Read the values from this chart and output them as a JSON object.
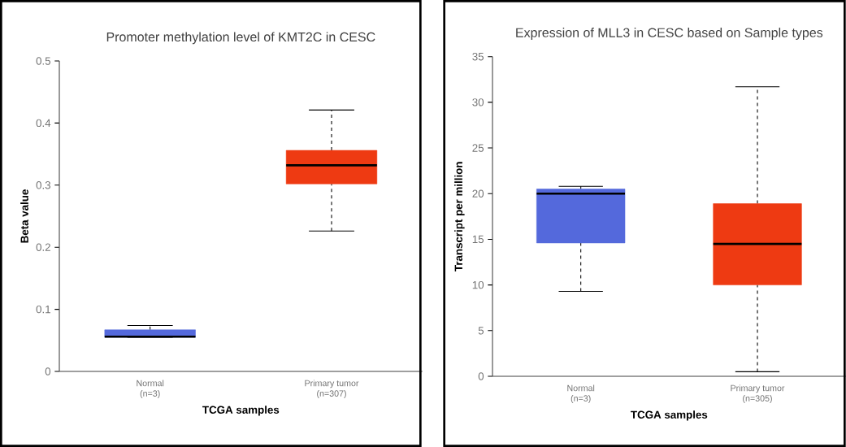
{
  "chart_data": [
    {
      "type": "box",
      "title": "Promoter methylation level of KMT2C in CESC",
      "xlabel": "TCGA samples",
      "ylabel": "Beta value",
      "categories": [
        "Normal (n=3)",
        "Primary tumor (n=307)"
      ],
      "colors": [
        "#5469dc",
        "#ee3a12"
      ],
      "boxes": [
        {
          "low": 0.055,
          "q1": 0.055,
          "median": 0.056,
          "q3": 0.067,
          "high": 0.074
        },
        {
          "low": 0.226,
          "q1": 0.302,
          "median": 0.332,
          "q3": 0.356,
          "high": 0.421
        }
      ],
      "ylim": [
        0,
        0.5
      ],
      "yticks": [
        0,
        0.1,
        0.2,
        0.3,
        0.4,
        0.5
      ]
    },
    {
      "type": "box",
      "title": "Expression of MLL3 in CESC based on Sample types",
      "xlabel": "TCGA samples",
      "ylabel": "Transcript per million",
      "categories": [
        "Normal (n=3)",
        "Primary tumor (n=305)"
      ],
      "colors": [
        "#5469dc",
        "#ee3a12"
      ],
      "boxes": [
        {
          "low": 9.3,
          "q1": 14.6,
          "median": 20.0,
          "q3": 20.5,
          "high": 20.8
        },
        {
          "low": 0.5,
          "q1": 10.0,
          "median": 14.5,
          "q3": 18.9,
          "high": 31.7
        }
      ],
      "ylim": [
        0,
        35
      ],
      "yticks": [
        0,
        5,
        10,
        15,
        20,
        25,
        30,
        35
      ]
    }
  ]
}
